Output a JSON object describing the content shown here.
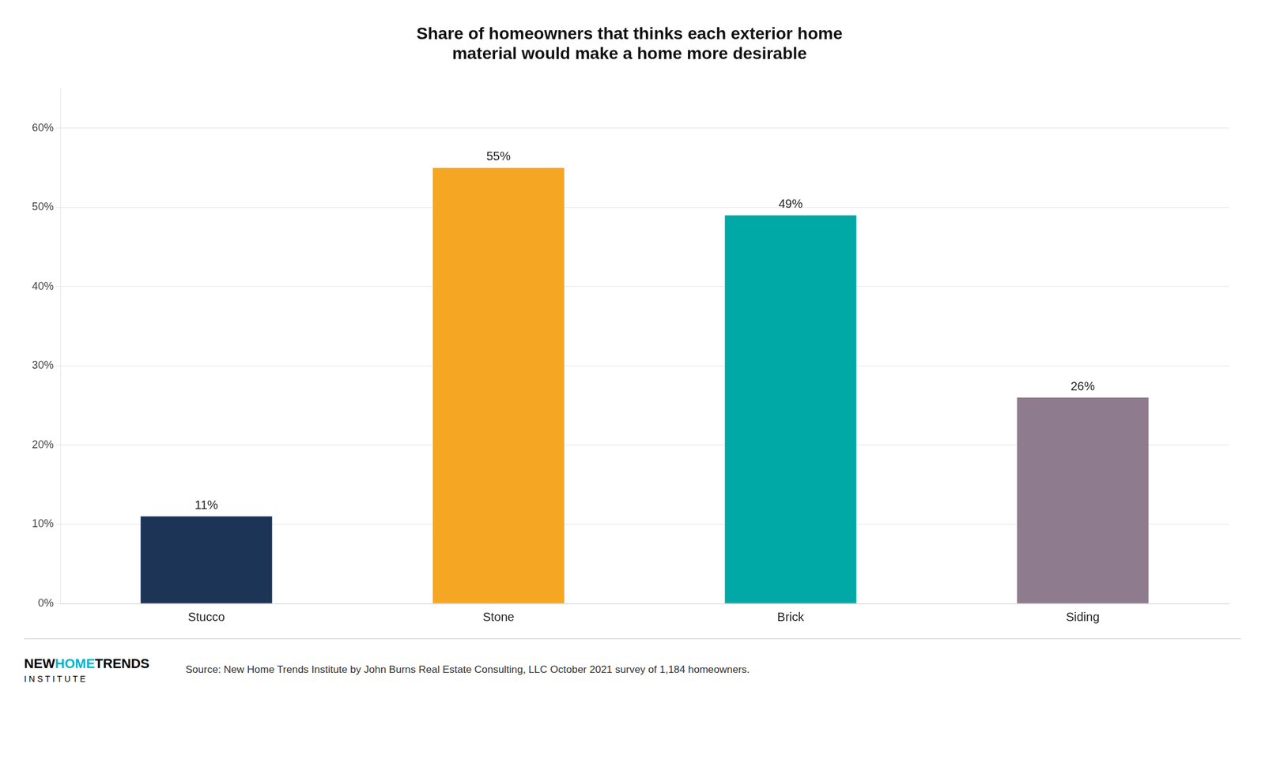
{
  "chart_data": {
    "type": "bar",
    "title": "Share of homeowners that thinks each exterior home\nmaterial would make a home more desirable",
    "categories": [
      "Stucco",
      "Stone",
      "Brick",
      "Siding"
    ],
    "values": [
      11,
      55,
      49,
      26
    ],
    "value_labels": [
      "11%",
      "55%",
      "49%",
      "26%"
    ],
    "colors": [
      "#1C3557",
      "#F5A623",
      "#00A9A5",
      "#8E7B8E"
    ],
    "ylim": [
      0,
      65
    ],
    "yticks": [
      {
        "value": 0,
        "label": "0%"
      },
      {
        "value": 10,
        "label": "10%"
      },
      {
        "value": 20,
        "label": "20%"
      },
      {
        "value": 30,
        "label": "30%"
      },
      {
        "value": 40,
        "label": "40%"
      },
      {
        "value": 50,
        "label": "50%"
      },
      {
        "value": 60,
        "label": "60%"
      }
    ],
    "grid": true,
    "data_labels": true,
    "annotations": [
      {
        "text": "NEW",
        "color": "#000000"
      },
      {
        "text": "HOME",
        "color": "#00B5CC"
      },
      {
        "text": "TRENDS",
        "color": "#000000"
      },
      {
        "text": "I N S T I T U T E",
        "color": "#000000"
      },
      {
        "text": "Source: New Home Trends Institute by John Burns Real Estate Consulting, LLC October 2021 survey of 1,184 homeowners."
      }
    ]
  }
}
